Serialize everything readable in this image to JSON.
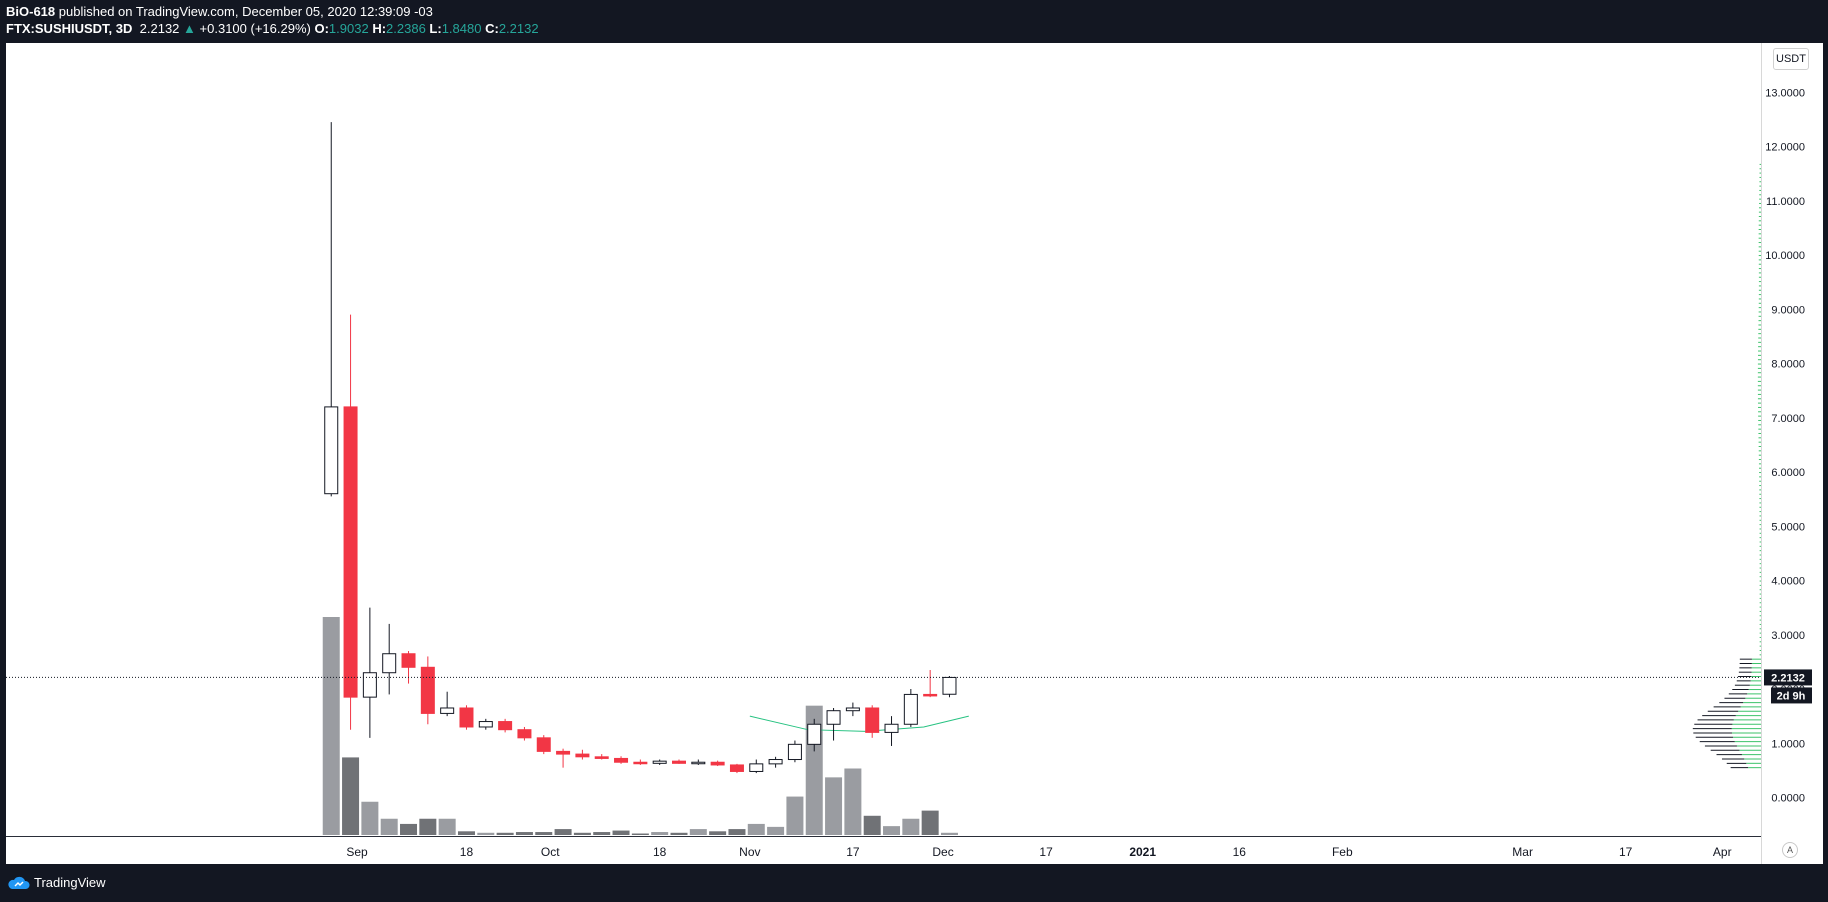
{
  "header": {
    "author": "BiO-618",
    "published_text": "published on TradingView.com, December 05, 2020 12:39:09 -03",
    "symbol": "FTX:SUSHIUSDT, 3D",
    "last_price": "2.2132",
    "change_arrow": "▲",
    "change_text": "+0.3100 (+16.29%)",
    "o_label": "O:",
    "o_value": "1.9032",
    "h_label": "H:",
    "h_value": "2.2386",
    "l_label": "L:",
    "l_value": "1.8480",
    "c_label": "C:",
    "c_value": "2.2132"
  },
  "footer": {
    "brand": "TradingView",
    "logo_icon": "tradingview-cloud-icon"
  },
  "axis_controls": {
    "currency": "USDT",
    "auto_scale": "A"
  },
  "colors": {
    "up": "#ffffff",
    "down": "#f23645",
    "wick_down": "#f23645",
    "vol_up": "#9a9ca1",
    "vol_down": "#707276",
    "price_line": "#131722",
    "curve": "#26c281",
    "profile_up": "#3cc26a",
    "profile_down": "#131722"
  },
  "chart_data": {
    "type": "candlestick",
    "symbol": "FTX:SUSHIUSDT",
    "interval": "3D",
    "y_range": [
      -0.7,
      13.7
    ],
    "y_ticks": [
      "13.0000",
      "12.0000",
      "11.0000",
      "10.0000",
      "9.0000",
      "8.0000",
      "7.0000",
      "6.0000",
      "5.0000",
      "4.0000",
      "3.0000",
      "2.0000",
      "1.0000",
      "0.0000"
    ],
    "y_tick_values": [
      13,
      12,
      11,
      10,
      9,
      8,
      7,
      6,
      5,
      4,
      3,
      2,
      1,
      0
    ],
    "x_labels": [
      "Sep",
      "18",
      "Oct",
      "18",
      "Nov",
      "17",
      "Dec",
      "17",
      "2021",
      "16",
      "Feb",
      "Mar",
      "17",
      "Apr"
    ],
    "x_label_dates": [
      "2020-09-01",
      "2020-09-18",
      "2020-10-01",
      "2020-10-18",
      "2020-11-01",
      "2020-11-17",
      "2020-12-01",
      "2020-12-17",
      "2021-01-01",
      "2021-01-16",
      "2021-02-01",
      "2021-03-01",
      "2021-03-17",
      "2021-04-01"
    ],
    "current_price_label": "2.2132",
    "countdown_label": "2d 9h",
    "candles": [
      {
        "date": "2020-08-28",
        "o": 5.6,
        "h": 12.45,
        "l": 5.55,
        "c": 7.2
      },
      {
        "date": "2020-08-31",
        "o": 7.2,
        "h": 8.9,
        "l": 1.25,
        "c": 1.85
      },
      {
        "date": "2020-09-03",
        "o": 1.85,
        "h": 3.5,
        "l": 1.1,
        "c": 2.3
      },
      {
        "date": "2020-09-06",
        "o": 2.3,
        "h": 3.2,
        "l": 1.9,
        "c": 2.65
      },
      {
        "date": "2020-09-09",
        "o": 2.65,
        "h": 2.7,
        "l": 2.1,
        "c": 2.4
      },
      {
        "date": "2020-09-12",
        "o": 2.4,
        "h": 2.6,
        "l": 1.35,
        "c": 1.55
      },
      {
        "date": "2020-09-15",
        "o": 1.55,
        "h": 1.95,
        "l": 1.5,
        "c": 1.65
      },
      {
        "date": "2020-09-18",
        "o": 1.65,
        "h": 1.7,
        "l": 1.25,
        "c": 1.3
      },
      {
        "date": "2020-09-21",
        "o": 1.3,
        "h": 1.45,
        "l": 1.25,
        "c": 1.4
      },
      {
        "date": "2020-09-24",
        "o": 1.4,
        "h": 1.45,
        "l": 1.2,
        "c": 1.25
      },
      {
        "date": "2020-09-27",
        "o": 1.25,
        "h": 1.3,
        "l": 1.05,
        "c": 1.1
      },
      {
        "date": "2020-09-30",
        "o": 1.1,
        "h": 1.15,
        "l": 0.8,
        "c": 0.85
      },
      {
        "date": "2020-10-03",
        "o": 0.85,
        "h": 0.9,
        "l": 0.55,
        "c": 0.8
      },
      {
        "date": "2020-10-06",
        "o": 0.8,
        "h": 0.88,
        "l": 0.7,
        "c": 0.75
      },
      {
        "date": "2020-10-09",
        "o": 0.75,
        "h": 0.8,
        "l": 0.7,
        "c": 0.72
      },
      {
        "date": "2020-10-12",
        "o": 0.72,
        "h": 0.76,
        "l": 0.62,
        "c": 0.65
      },
      {
        "date": "2020-10-15",
        "o": 0.65,
        "h": 0.7,
        "l": 0.6,
        "c": 0.63
      },
      {
        "date": "2020-10-18",
        "o": 0.63,
        "h": 0.7,
        "l": 0.6,
        "c": 0.67
      },
      {
        "date": "2020-10-21",
        "o": 0.67,
        "h": 0.7,
        "l": 0.62,
        "c": 0.63
      },
      {
        "date": "2020-10-24",
        "o": 0.63,
        "h": 0.7,
        "l": 0.6,
        "c": 0.65
      },
      {
        "date": "2020-10-27",
        "o": 0.65,
        "h": 0.68,
        "l": 0.58,
        "c": 0.6
      },
      {
        "date": "2020-10-30",
        "o": 0.6,
        "h": 0.62,
        "l": 0.45,
        "c": 0.48
      },
      {
        "date": "2020-11-02",
        "o": 0.48,
        "h": 0.7,
        "l": 0.45,
        "c": 0.62
      },
      {
        "date": "2020-11-05",
        "o": 0.62,
        "h": 0.75,
        "l": 0.55,
        "c": 0.7
      },
      {
        "date": "2020-11-08",
        "o": 0.7,
        "h": 1.05,
        "l": 0.65,
        "c": 0.98
      },
      {
        "date": "2020-11-11",
        "o": 0.98,
        "h": 1.45,
        "l": 0.85,
        "c": 1.35
      },
      {
        "date": "2020-11-14",
        "o": 1.35,
        "h": 1.65,
        "l": 1.05,
        "c": 1.6
      },
      {
        "date": "2020-11-17",
        "o": 1.6,
        "h": 1.75,
        "l": 1.5,
        "c": 1.65
      },
      {
        "date": "2020-11-20",
        "o": 1.65,
        "h": 1.7,
        "l": 1.1,
        "c": 1.2
      },
      {
        "date": "2020-11-23",
        "o": 1.2,
        "h": 1.5,
        "l": 0.95,
        "c": 1.35
      },
      {
        "date": "2020-11-26",
        "o": 1.35,
        "h": 2.0,
        "l": 1.3,
        "c": 1.9
      },
      {
        "date": "2020-11-29",
        "o": 1.9,
        "h": 2.35,
        "l": 1.85,
        "c": 1.88
      },
      {
        "date": "2020-12-02",
        "o": 1.9032,
        "h": 2.2386,
        "l": 1.848,
        "c": 2.2132
      }
    ],
    "volume": [
      2.95,
      1.05,
      0.45,
      0.22,
      0.15,
      0.22,
      0.22,
      0.05,
      0.03,
      0.03,
      0.04,
      0.04,
      0.08,
      0.03,
      0.04,
      0.06,
      0.02,
      0.04,
      0.03,
      0.08,
      0.05,
      0.08,
      0.15,
      0.11,
      0.52,
      1.75,
      0.78,
      0.9,
      0.26,
      0.12,
      0.22,
      0.33,
      0.03
    ],
    "vwap_curve": [
      {
        "date": "2020-11-01",
        "v": 1.5
      },
      {
        "date": "2020-11-10",
        "v": 1.25
      },
      {
        "date": "2020-11-19",
        "v": 1.22
      },
      {
        "date": "2020-11-28",
        "v": 1.3
      },
      {
        "date": "2020-12-05",
        "v": 1.5
      }
    ]
  }
}
